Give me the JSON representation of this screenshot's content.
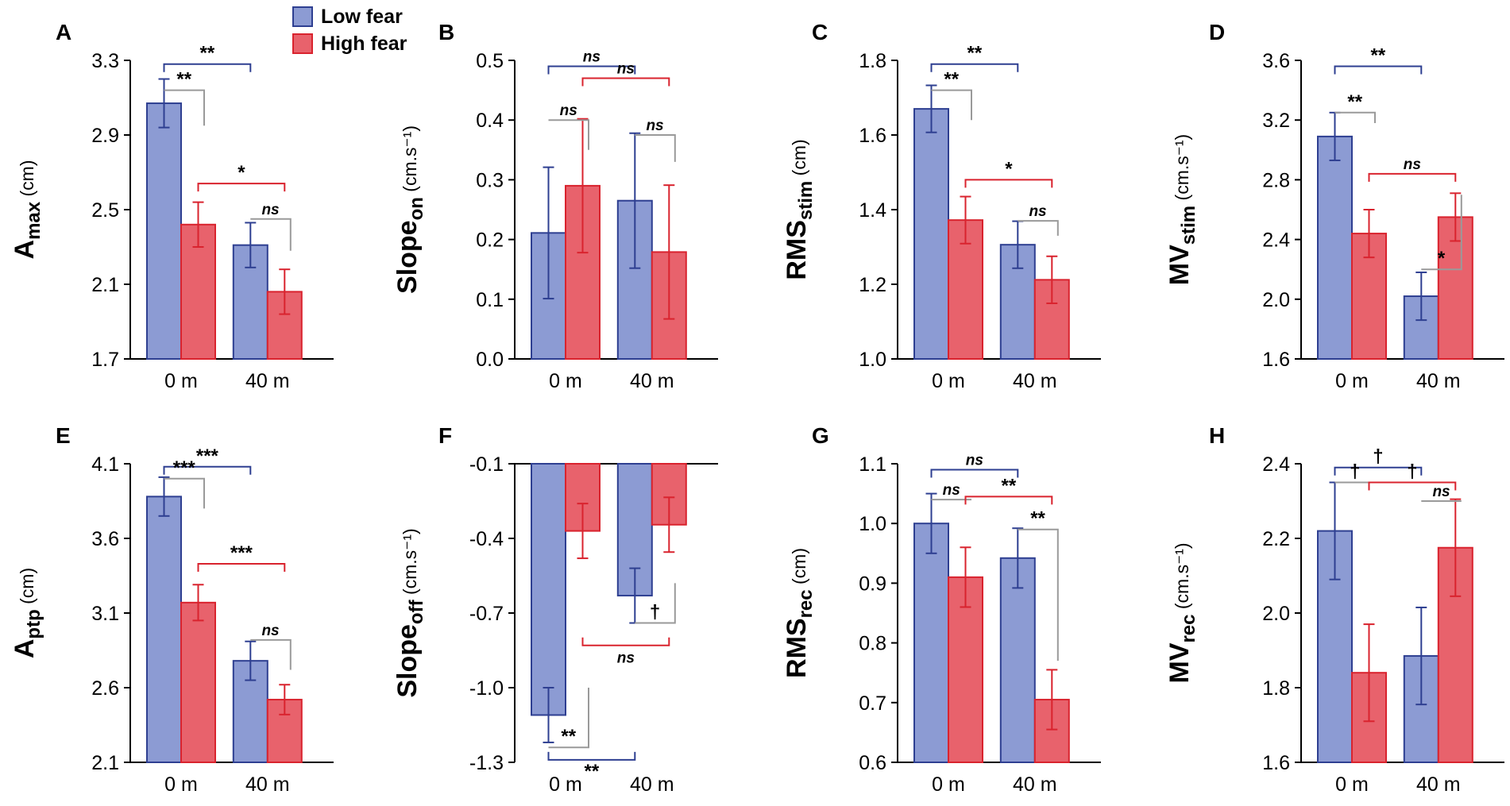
{
  "legend": {
    "low_fear": "Low fear",
    "high_fear": "High fear"
  },
  "colors": {
    "low_fill": "#8c9bd3",
    "low_edge": "#2e3f91",
    "high_fill": "#e8626c",
    "high_edge": "#d9232e",
    "gray": "#9a9a9a"
  },
  "chart_data": [
    {
      "panel": "A",
      "type": "bar",
      "ylabel_main": "A",
      "ylabel_sub": "max",
      "ylabel_unit": "(cm)",
      "ylim": [
        1.7,
        3.3
      ],
      "yticks": [
        "1.7",
        "2.1",
        "2.5",
        "2.9",
        "3.3"
      ],
      "baseline": 1.7,
      "categories": [
        "0 m",
        "40 m"
      ],
      "series": [
        {
          "name": "Low fear",
          "values": [
            3.07,
            2.31
          ],
          "errors": [
            0.13,
            0.12
          ]
        },
        {
          "name": "High fear",
          "values": [
            2.42,
            2.06
          ],
          "errors": [
            0.12,
            0.12
          ]
        }
      ],
      "annotations": [
        {
          "type": "bracket",
          "from": [
            0,
            0
          ],
          "to": [
            1,
            0
          ],
          "y": 3.28,
          "label": "**",
          "color": "blue"
        },
        {
          "type": "side",
          "from": [
            0,
            0
          ],
          "to": [
            0,
            1
          ],
          "y1": 3.14,
          "y2": 2.95,
          "label": "**"
        },
        {
          "type": "bracket",
          "from": [
            0,
            1
          ],
          "to": [
            1,
            1
          ],
          "y": 2.64,
          "label": "*",
          "color": "red"
        },
        {
          "type": "side",
          "from": [
            1,
            0
          ],
          "to": [
            1,
            1
          ],
          "y1": 2.45,
          "y2": 2.28,
          "label": "ns"
        }
      ]
    },
    {
      "panel": "B",
      "type": "bar",
      "ylabel_main": "Slope",
      "ylabel_sub": "on",
      "ylabel_unit": "(cm.s⁻¹)",
      "ylim": [
        0.0,
        0.5
      ],
      "yticks": [
        "0.0",
        "0.1",
        "0.2",
        "0.3",
        "0.4",
        "0.5"
      ],
      "baseline": 0.0,
      "categories": [
        "0 m",
        "40 m"
      ],
      "series": [
        {
          "name": "Low fear",
          "values": [
            0.211,
            0.265
          ],
          "errors": [
            0.11,
            0.113
          ]
        },
        {
          "name": "High fear",
          "values": [
            0.29,
            0.179
          ],
          "errors": [
            0.112,
            0.112
          ]
        }
      ],
      "annotations": [
        {
          "type": "bracket",
          "from": [
            0,
            0
          ],
          "to": [
            1,
            0
          ],
          "y": 0.49,
          "label": "ns",
          "color": "blue"
        },
        {
          "type": "bracket",
          "from": [
            0,
            1
          ],
          "to": [
            1,
            1
          ],
          "y": 0.47,
          "label": "ns",
          "color": "red"
        },
        {
          "type": "side",
          "from": [
            0,
            0
          ],
          "to": [
            0,
            1
          ],
          "y1": 0.4,
          "y2": 0.35,
          "label": "ns"
        },
        {
          "type": "side",
          "from": [
            1,
            0
          ],
          "to": [
            1,
            1
          ],
          "y1": 0.375,
          "y2": 0.33,
          "label": "ns"
        }
      ]
    },
    {
      "panel": "C",
      "type": "bar",
      "ylabel_main": "RMS",
      "ylabel_sub": "stim",
      "ylabel_unit": "(cm)",
      "ylim": [
        1.0,
        1.8
      ],
      "yticks": [
        "1.0",
        "1.2",
        "1.4",
        "1.6",
        "1.8"
      ],
      "baseline": 1.0,
      "categories": [
        "0 m",
        "40 m"
      ],
      "series": [
        {
          "name": "Low fear",
          "values": [
            1.67,
            1.306
          ],
          "errors": [
            0.063,
            0.063
          ]
        },
        {
          "name": "High fear",
          "values": [
            1.372,
            1.212
          ],
          "errors": [
            0.063,
            0.063
          ]
        }
      ],
      "annotations": [
        {
          "type": "bracket",
          "from": [
            0,
            0
          ],
          "to": [
            1,
            0
          ],
          "y": 1.79,
          "label": "**",
          "color": "blue"
        },
        {
          "type": "side",
          "from": [
            0,
            0
          ],
          "to": [
            0,
            1
          ],
          "y1": 1.72,
          "y2": 1.64,
          "label": "**"
        },
        {
          "type": "bracket",
          "from": [
            0,
            1
          ],
          "to": [
            1,
            1
          ],
          "y": 1.48,
          "label": "*",
          "color": "red"
        },
        {
          "type": "side",
          "from": [
            1,
            0
          ],
          "to": [
            1,
            1
          ],
          "y1": 1.37,
          "y2": 1.33,
          "label": "ns"
        }
      ]
    },
    {
      "panel": "D",
      "type": "bar",
      "ylabel_main": "MV",
      "ylabel_sub": "stim",
      "ylabel_unit": "(cm.s⁻¹)",
      "ylim": [
        1.6,
        3.6
      ],
      "yticks": [
        "1.6",
        "2.0",
        "2.4",
        "2.8",
        "3.2",
        "3.6"
      ],
      "baseline": 1.6,
      "categories": [
        "0 m",
        "40 m"
      ],
      "series": [
        {
          "name": "Low fear",
          "values": [
            3.09,
            2.02
          ],
          "errors": [
            0.16,
            0.16
          ]
        },
        {
          "name": "High fear",
          "values": [
            2.44,
            2.55
          ],
          "errors": [
            0.16,
            0.16
          ]
        }
      ],
      "annotations": [
        {
          "type": "bracket",
          "from": [
            0,
            0
          ],
          "to": [
            1,
            0
          ],
          "y": 3.56,
          "label": "**",
          "color": "blue"
        },
        {
          "type": "side",
          "from": [
            0,
            0
          ],
          "to": [
            0,
            1
          ],
          "y1": 3.25,
          "y2": 3.18,
          "label": "**"
        },
        {
          "type": "bracket",
          "from": [
            0,
            1
          ],
          "to": [
            1,
            1
          ],
          "y": 2.84,
          "label": "ns",
          "color": "red"
        },
        {
          "type": "side",
          "from": [
            1,
            0
          ],
          "to": [
            1,
            1
          ],
          "y1": 2.2,
          "y2": 2.7,
          "label": "*"
        }
      ]
    },
    {
      "panel": "E",
      "type": "bar",
      "ylabel_main": "A",
      "ylabel_sub": "ptp",
      "ylabel_unit": "(cm)",
      "ylim": [
        2.1,
        4.1
      ],
      "yticks": [
        "2.1",
        "2.6",
        "3.1",
        "3.6",
        "4.1"
      ],
      "baseline": 2.1,
      "categories": [
        "0 m",
        "40 m"
      ],
      "series": [
        {
          "name": "Low fear",
          "values": [
            3.88,
            2.78
          ],
          "errors": [
            0.13,
            0.13
          ]
        },
        {
          "name": "High fear",
          "values": [
            3.17,
            2.52
          ],
          "errors": [
            0.12,
            0.1
          ]
        }
      ],
      "annotations": [
        {
          "type": "bracket",
          "from": [
            0,
            0
          ],
          "to": [
            1,
            0
          ],
          "y": 4.08,
          "label": "***",
          "color": "blue"
        },
        {
          "type": "side",
          "from": [
            0,
            0
          ],
          "to": [
            0,
            1
          ],
          "y1": 4.0,
          "y2": 3.8,
          "label": "***"
        },
        {
          "type": "bracket",
          "from": [
            0,
            1
          ],
          "to": [
            1,
            1
          ],
          "y": 3.43,
          "label": "***",
          "color": "red"
        },
        {
          "type": "side",
          "from": [
            1,
            0
          ],
          "to": [
            1,
            1
          ],
          "y1": 2.92,
          "y2": 2.72,
          "label": "ns"
        }
      ]
    },
    {
      "panel": "F",
      "type": "bar",
      "ylabel_main": "Slope",
      "ylabel_sub": "off",
      "ylabel_unit": "(cm.s⁻¹)",
      "ylim": [
        -1.3,
        -0.1
      ],
      "yticks": [
        "-1.3",
        "-1.0",
        "-0.7",
        "-0.4",
        "-0.1"
      ],
      "baseline": -0.1,
      "categories": [
        "0 m",
        "40 m"
      ],
      "series": [
        {
          "name": "Low fear",
          "values": [
            -1.11,
            -0.63
          ],
          "errors": [
            0.11,
            0.11
          ]
        },
        {
          "name": "High fear",
          "values": [
            -0.37,
            -0.345
          ],
          "errors": [
            0.11,
            0.11
          ]
        }
      ],
      "annotations": [
        {
          "type": "side",
          "from": [
            0,
            0
          ],
          "to": [
            0,
            1
          ],
          "y1": -1.24,
          "y2": -1.0,
          "label": "**"
        },
        {
          "type": "bracket",
          "from": [
            0,
            0
          ],
          "to": [
            1,
            0
          ],
          "y": -1.29,
          "label": "**",
          "color": "blue",
          "down": true
        },
        {
          "type": "side",
          "from": [
            1,
            0
          ],
          "to": [
            1,
            1
          ],
          "y1": -0.74,
          "y2": -0.58,
          "label": "†"
        },
        {
          "type": "bracket",
          "from": [
            0,
            1
          ],
          "to": [
            1,
            1
          ],
          "y": -0.83,
          "label": "ns",
          "color": "red",
          "down": true
        }
      ]
    },
    {
      "panel": "G",
      "type": "bar",
      "ylabel_main": "RMS",
      "ylabel_sub": "rec",
      "ylabel_unit": "(cm)",
      "ylim": [
        0.6,
        1.1
      ],
      "yticks": [
        "0.6",
        "0.7",
        "0.8",
        "0.9",
        "1.0",
        "1.1"
      ],
      "baseline": 0.6,
      "categories": [
        "0 m",
        "40 m"
      ],
      "series": [
        {
          "name": "Low fear",
          "values": [
            1.0,
            0.942
          ],
          "errors": [
            0.05,
            0.05
          ]
        },
        {
          "name": "High fear",
          "values": [
            0.91,
            0.705
          ],
          "errors": [
            0.05,
            0.05
          ]
        }
      ],
      "annotations": [
        {
          "type": "bracket",
          "from": [
            0,
            0
          ],
          "to": [
            1,
            0
          ],
          "y": 1.09,
          "label": "ns",
          "color": "blue"
        },
        {
          "type": "side",
          "from": [
            0,
            0
          ],
          "to": [
            0,
            1
          ],
          "y1": 1.04,
          "y2": 1.04,
          "label": "ns"
        },
        {
          "type": "bracket",
          "from": [
            0,
            1
          ],
          "to": [
            1,
            1
          ],
          "y": 1.045,
          "label": "**",
          "color": "red"
        },
        {
          "type": "side",
          "from": [
            1,
            0
          ],
          "to": [
            1,
            1
          ],
          "y1": 0.99,
          "y2": 0.77,
          "label": "**"
        }
      ]
    },
    {
      "panel": "H",
      "type": "bar",
      "ylabel_main": "MV",
      "ylabel_sub": "rec",
      "ylabel_unit": "(cm.s⁻¹)",
      "ylim": [
        1.6,
        2.4
      ],
      "yticks": [
        "1.6",
        "1.8",
        "2.0",
        "2.2",
        "2.4"
      ],
      "baseline": 1.6,
      "categories": [
        "0 m",
        "40 m"
      ],
      "series": [
        {
          "name": "Low fear",
          "values": [
            2.22,
            1.885
          ],
          "errors": [
            0.13,
            0.13
          ]
        },
        {
          "name": "High fear",
          "values": [
            1.84,
            2.175
          ],
          "errors": [
            0.13,
            0.13
          ]
        }
      ],
      "annotations": [
        {
          "type": "bracket",
          "from": [
            0,
            0
          ],
          "to": [
            1,
            0
          ],
          "y": 2.39,
          "label": "†",
          "color": "blue"
        },
        {
          "type": "side",
          "from": [
            0,
            0
          ],
          "to": [
            0,
            1
          ],
          "y1": 2.35,
          "y2": 2.35,
          "label": "†"
        },
        {
          "type": "bracket",
          "from": [
            0,
            1
          ],
          "to": [
            1,
            1
          ],
          "y": 2.35,
          "label": "†",
          "color": "red"
        },
        {
          "type": "side",
          "from": [
            1,
            0
          ],
          "to": [
            1,
            1
          ],
          "y1": 2.3,
          "y2": 2.3,
          "label": "ns"
        }
      ]
    }
  ]
}
